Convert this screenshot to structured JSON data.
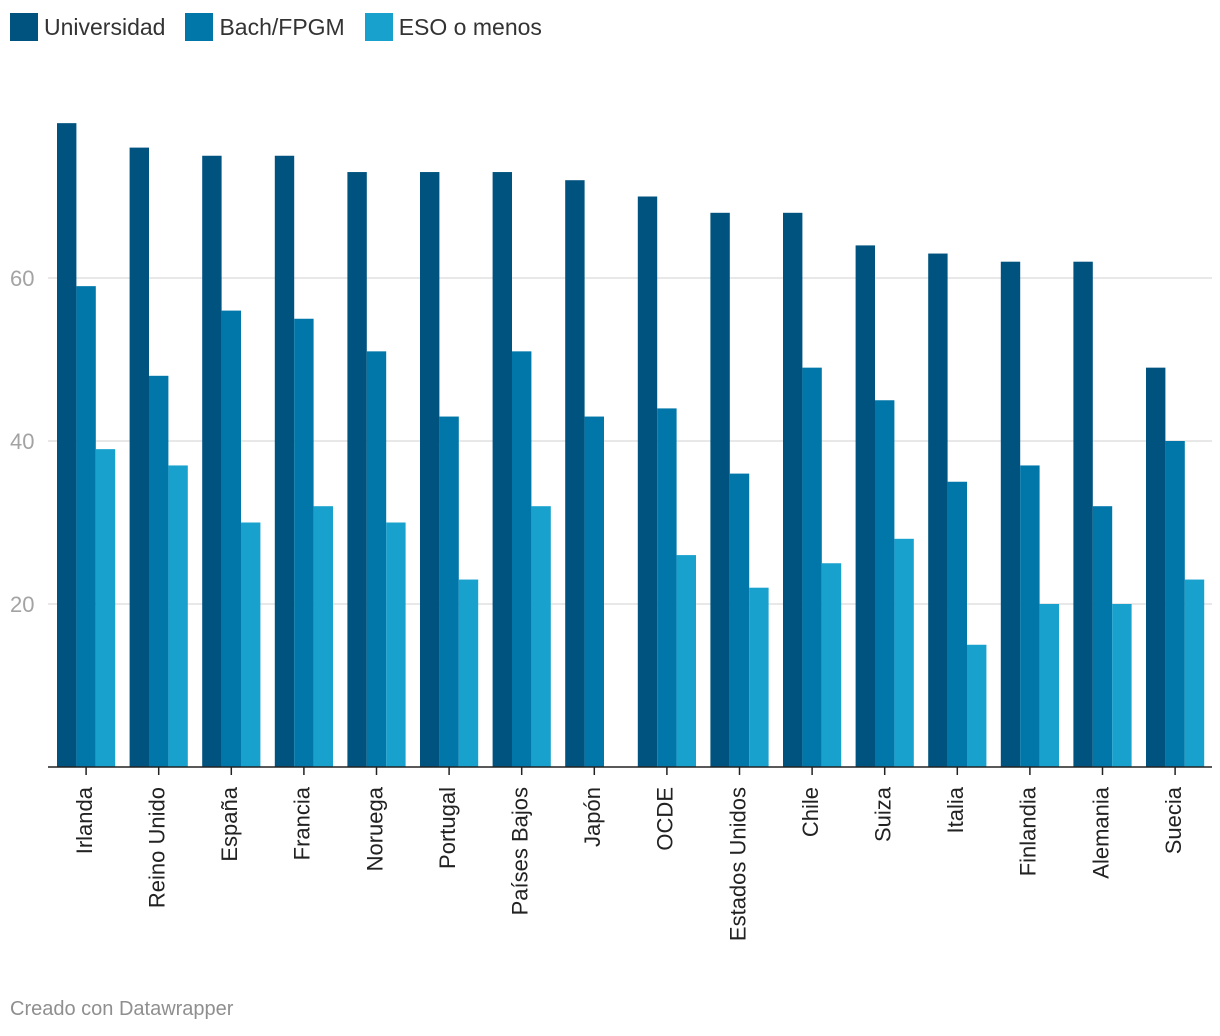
{
  "chart_data": {
    "type": "bar",
    "categories": [
      "Irlanda",
      "Reino Unido",
      "España",
      "Francia",
      "Noruega",
      "Portugal",
      "Países Bajos",
      "Japón",
      "OCDE",
      "Estados Unidos",
      "Chile",
      "Suiza",
      "Italia",
      "Finlandia",
      "Alemania",
      "Suecia"
    ],
    "series": [
      {
        "name": "Universidad",
        "color": "#00537f",
        "values": [
          79,
          76,
          75,
          75,
          73,
          73,
          73,
          72,
          70,
          68,
          68,
          64,
          63,
          62,
          62,
          49
        ]
      },
      {
        "name": "Bach/FPGM",
        "color": "#0077a8",
        "values": [
          59,
          48,
          56,
          55,
          51,
          43,
          51,
          43,
          44,
          36,
          49,
          45,
          35,
          37,
          32,
          40
        ]
      },
      {
        "name": "ESO o menos",
        "color": "#18a1cd",
        "values": [
          39,
          37,
          30,
          32,
          30,
          23,
          32,
          null,
          26,
          22,
          25,
          28,
          15,
          20,
          20,
          23
        ]
      }
    ],
    "yticks": [
      20,
      40,
      60
    ],
    "ylim": [
      0,
      80
    ],
    "grid": true,
    "legend_position": "top-left"
  },
  "footer": {
    "credit": "Creado con Datawrapper"
  }
}
